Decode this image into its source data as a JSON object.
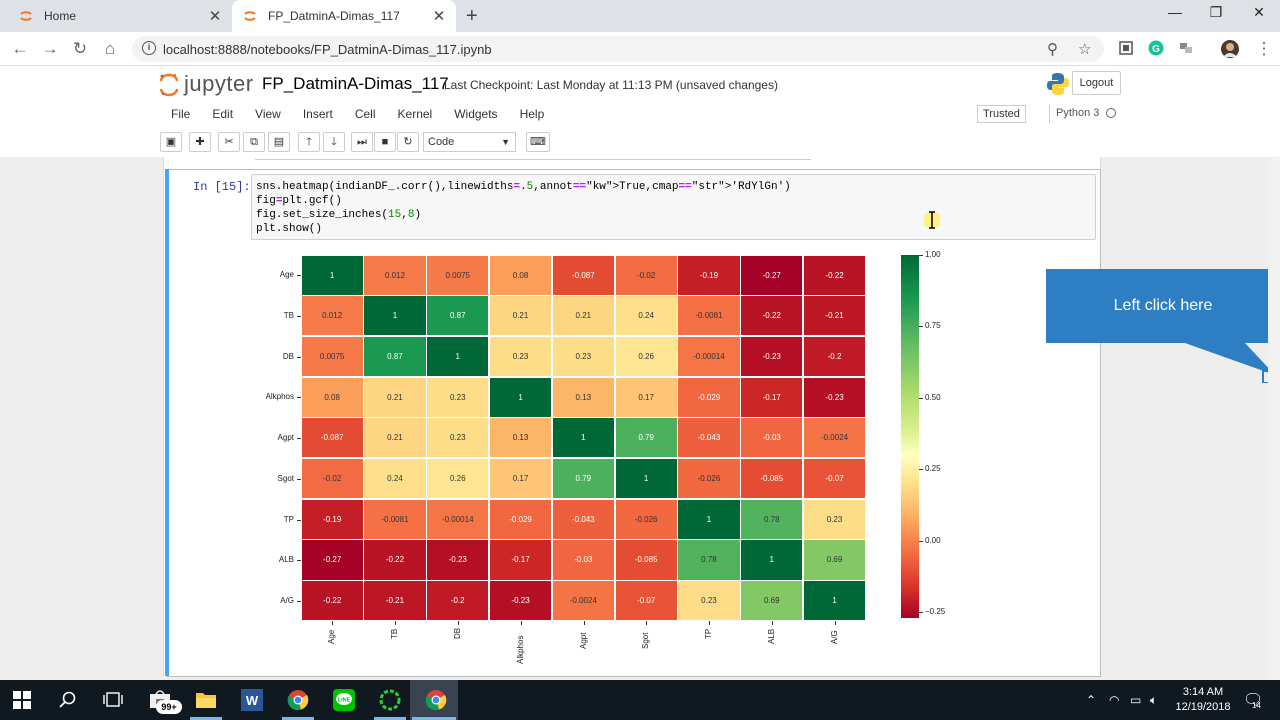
{
  "browser": {
    "tabs": [
      {
        "title": "Home",
        "active": false
      },
      {
        "title": "FP_DatminA-Dimas_117",
        "active": true
      }
    ],
    "url": "localhost:8888/notebooks/FP_DatminA-Dimas_117.ipynb"
  },
  "jupyter": {
    "logo_text": "jupyter",
    "notebook_title": "FP_DatminA-Dimas_117",
    "checkpoint": "Last Checkpoint: Last Monday at 11:13 PM (unsaved changes)",
    "logout_label": "Logout",
    "menu": [
      "File",
      "Edit",
      "View",
      "Insert",
      "Cell",
      "Kernel",
      "Widgets",
      "Help"
    ],
    "trusted_label": "Trusted",
    "kernel_name": "Python 3",
    "cell_type": "Code"
  },
  "cell": {
    "prompt": "In [15]:",
    "code": [
      "sns.heatmap(indianDF_.corr(),linewidths=.5,annot=True,cmap='RdYlGn')",
      "fig=plt.gcf()",
      "fig.set_size_inches(15,8)",
      "plt.show()"
    ]
  },
  "chart_data": {
    "type": "heatmap",
    "labels": [
      "Age",
      "TB",
      "DB",
      "Alkphos",
      "Agpt",
      "Sgot",
      "TP",
      "ALB",
      "A/G"
    ],
    "matrix": [
      [
        "1",
        "0.012",
        "0.0075",
        "0.08",
        "-0.087",
        "-0.02",
        "-0.19",
        "-0.27",
        "-0.22"
      ],
      [
        "0.012",
        "1",
        "0.87",
        "0.21",
        "0.21",
        "0.24",
        "-0.0081",
        "-0.22",
        "-0.21"
      ],
      [
        "0.0075",
        "0.87",
        "1",
        "0.23",
        "0.23",
        "0.26",
        "-0.00014",
        "-0.23",
        "-0.2"
      ],
      [
        "0.08",
        "0.21",
        "0.23",
        "1",
        "0.13",
        "0.17",
        "-0.029",
        "-0.17",
        "-0.23"
      ],
      [
        "-0.087",
        "0.21",
        "0.23",
        "0.13",
        "1",
        "0.79",
        "-0.043",
        "-0.03",
        "-0.0024"
      ],
      [
        "-0.02",
        "0.24",
        "0.26",
        "0.17",
        "0.79",
        "1",
        "-0.026",
        "-0.085",
        "-0.07"
      ],
      [
        "-0.19",
        "-0.0081",
        "-0.00014",
        "-0.029",
        "-0.043",
        "-0.026",
        "1",
        "0.78",
        "0.23"
      ],
      [
        "-0.27",
        "-0.22",
        "-0.23",
        "-0.17",
        "-0.03",
        "-0.085",
        "0.78",
        "1",
        "0.69"
      ],
      [
        "-0.22",
        "-0.21",
        "-0.2",
        "-0.23",
        "-0.0024",
        "-0.07",
        "0.23",
        "0.69",
        "1"
      ]
    ],
    "cmap": "RdYlGn",
    "vmin": -0.27,
    "vmax": 1.0,
    "colorbar_ticks": [
      "1.00",
      "0.75",
      "0.50",
      "0.25",
      "0.00",
      "−0.25"
    ]
  },
  "callout": {
    "text": "Left click here"
  },
  "taskbar": {
    "time": "3:14 AM",
    "date": "12/19/2018",
    "badge": "99+",
    "notif_count": "14"
  }
}
